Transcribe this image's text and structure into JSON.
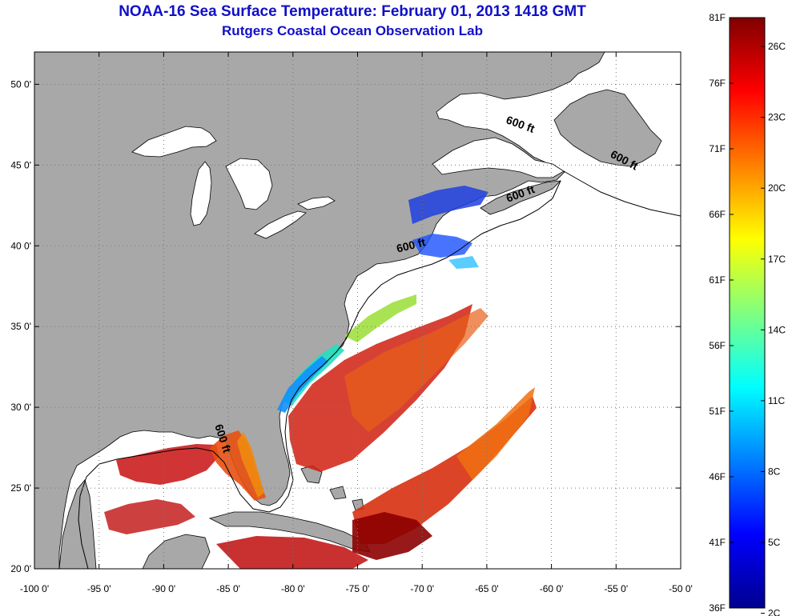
{
  "title": {
    "line1": "NOAA-16 Sea Surface Temperature:  February 01, 2013 1418 GMT",
    "line2": "Rutgers Coastal Ocean Observation Lab"
  },
  "map": {
    "lon_range": [
      -100,
      -50
    ],
    "lat_range": [
      20,
      52
    ],
    "x_ticks": [
      {
        "lon": -100,
        "label": "-100 0'"
      },
      {
        "lon": -95,
        "label": "-95 0'"
      },
      {
        "lon": -90,
        "label": "-90 0'"
      },
      {
        "lon": -85,
        "label": "-85 0'"
      },
      {
        "lon": -80,
        "label": "-80 0'"
      },
      {
        "lon": -75,
        "label": "-75 0'"
      },
      {
        "lon": -70,
        "label": "-70 0'"
      },
      {
        "lon": -65,
        "label": "-65 0'"
      },
      {
        "lon": -60,
        "label": "-60 0'"
      },
      {
        "lon": -55,
        "label": "-55 0'"
      },
      {
        "lon": -50,
        "label": "-50 0'"
      }
    ],
    "y_ticks": [
      {
        "lat": 20,
        "label": "20 0'"
      },
      {
        "lat": 25,
        "label": "25 0'"
      },
      {
        "lat": 30,
        "label": "30 0'"
      },
      {
        "lat": 35,
        "label": "35 0'"
      },
      {
        "lat": 40,
        "label": "40 0'"
      },
      {
        "lat": 45,
        "label": "45 0'"
      },
      {
        "lat": 50,
        "label": "50 0'"
      }
    ],
    "contour_labels": [
      {
        "text": "600 ft",
        "lon": -62.5,
        "lat": 47.3,
        "rotate": 20
      },
      {
        "text": "600 ft",
        "lon": -54.5,
        "lat": 45.1,
        "rotate": 28
      },
      {
        "text": "600 ft",
        "lon": -62.3,
        "lat": 43.0,
        "rotate": -20
      },
      {
        "text": "600 ft",
        "lon": -70.8,
        "lat": 39.8,
        "rotate": -14
      },
      {
        "text": "600 ft",
        "lon": -85.7,
        "lat": 28.0,
        "rotate": 72
      }
    ],
    "colors": {
      "land": "#a8a8a8",
      "ocean_nodata": "#ffffff",
      "grid": "#888888"
    }
  },
  "colorbar": {
    "fahrenheit_labels": [
      "81F",
      "76F",
      "71F",
      "66F",
      "61F",
      "56F",
      "51F",
      "46F",
      "41F",
      "36F"
    ],
    "celsius_labels": [
      "26C",
      "23C",
      "20C",
      "17C",
      "14C",
      "11C",
      "8C",
      "5C",
      "2C"
    ],
    "range_f": [
      36,
      81
    ],
    "colormap": "jet"
  }
}
